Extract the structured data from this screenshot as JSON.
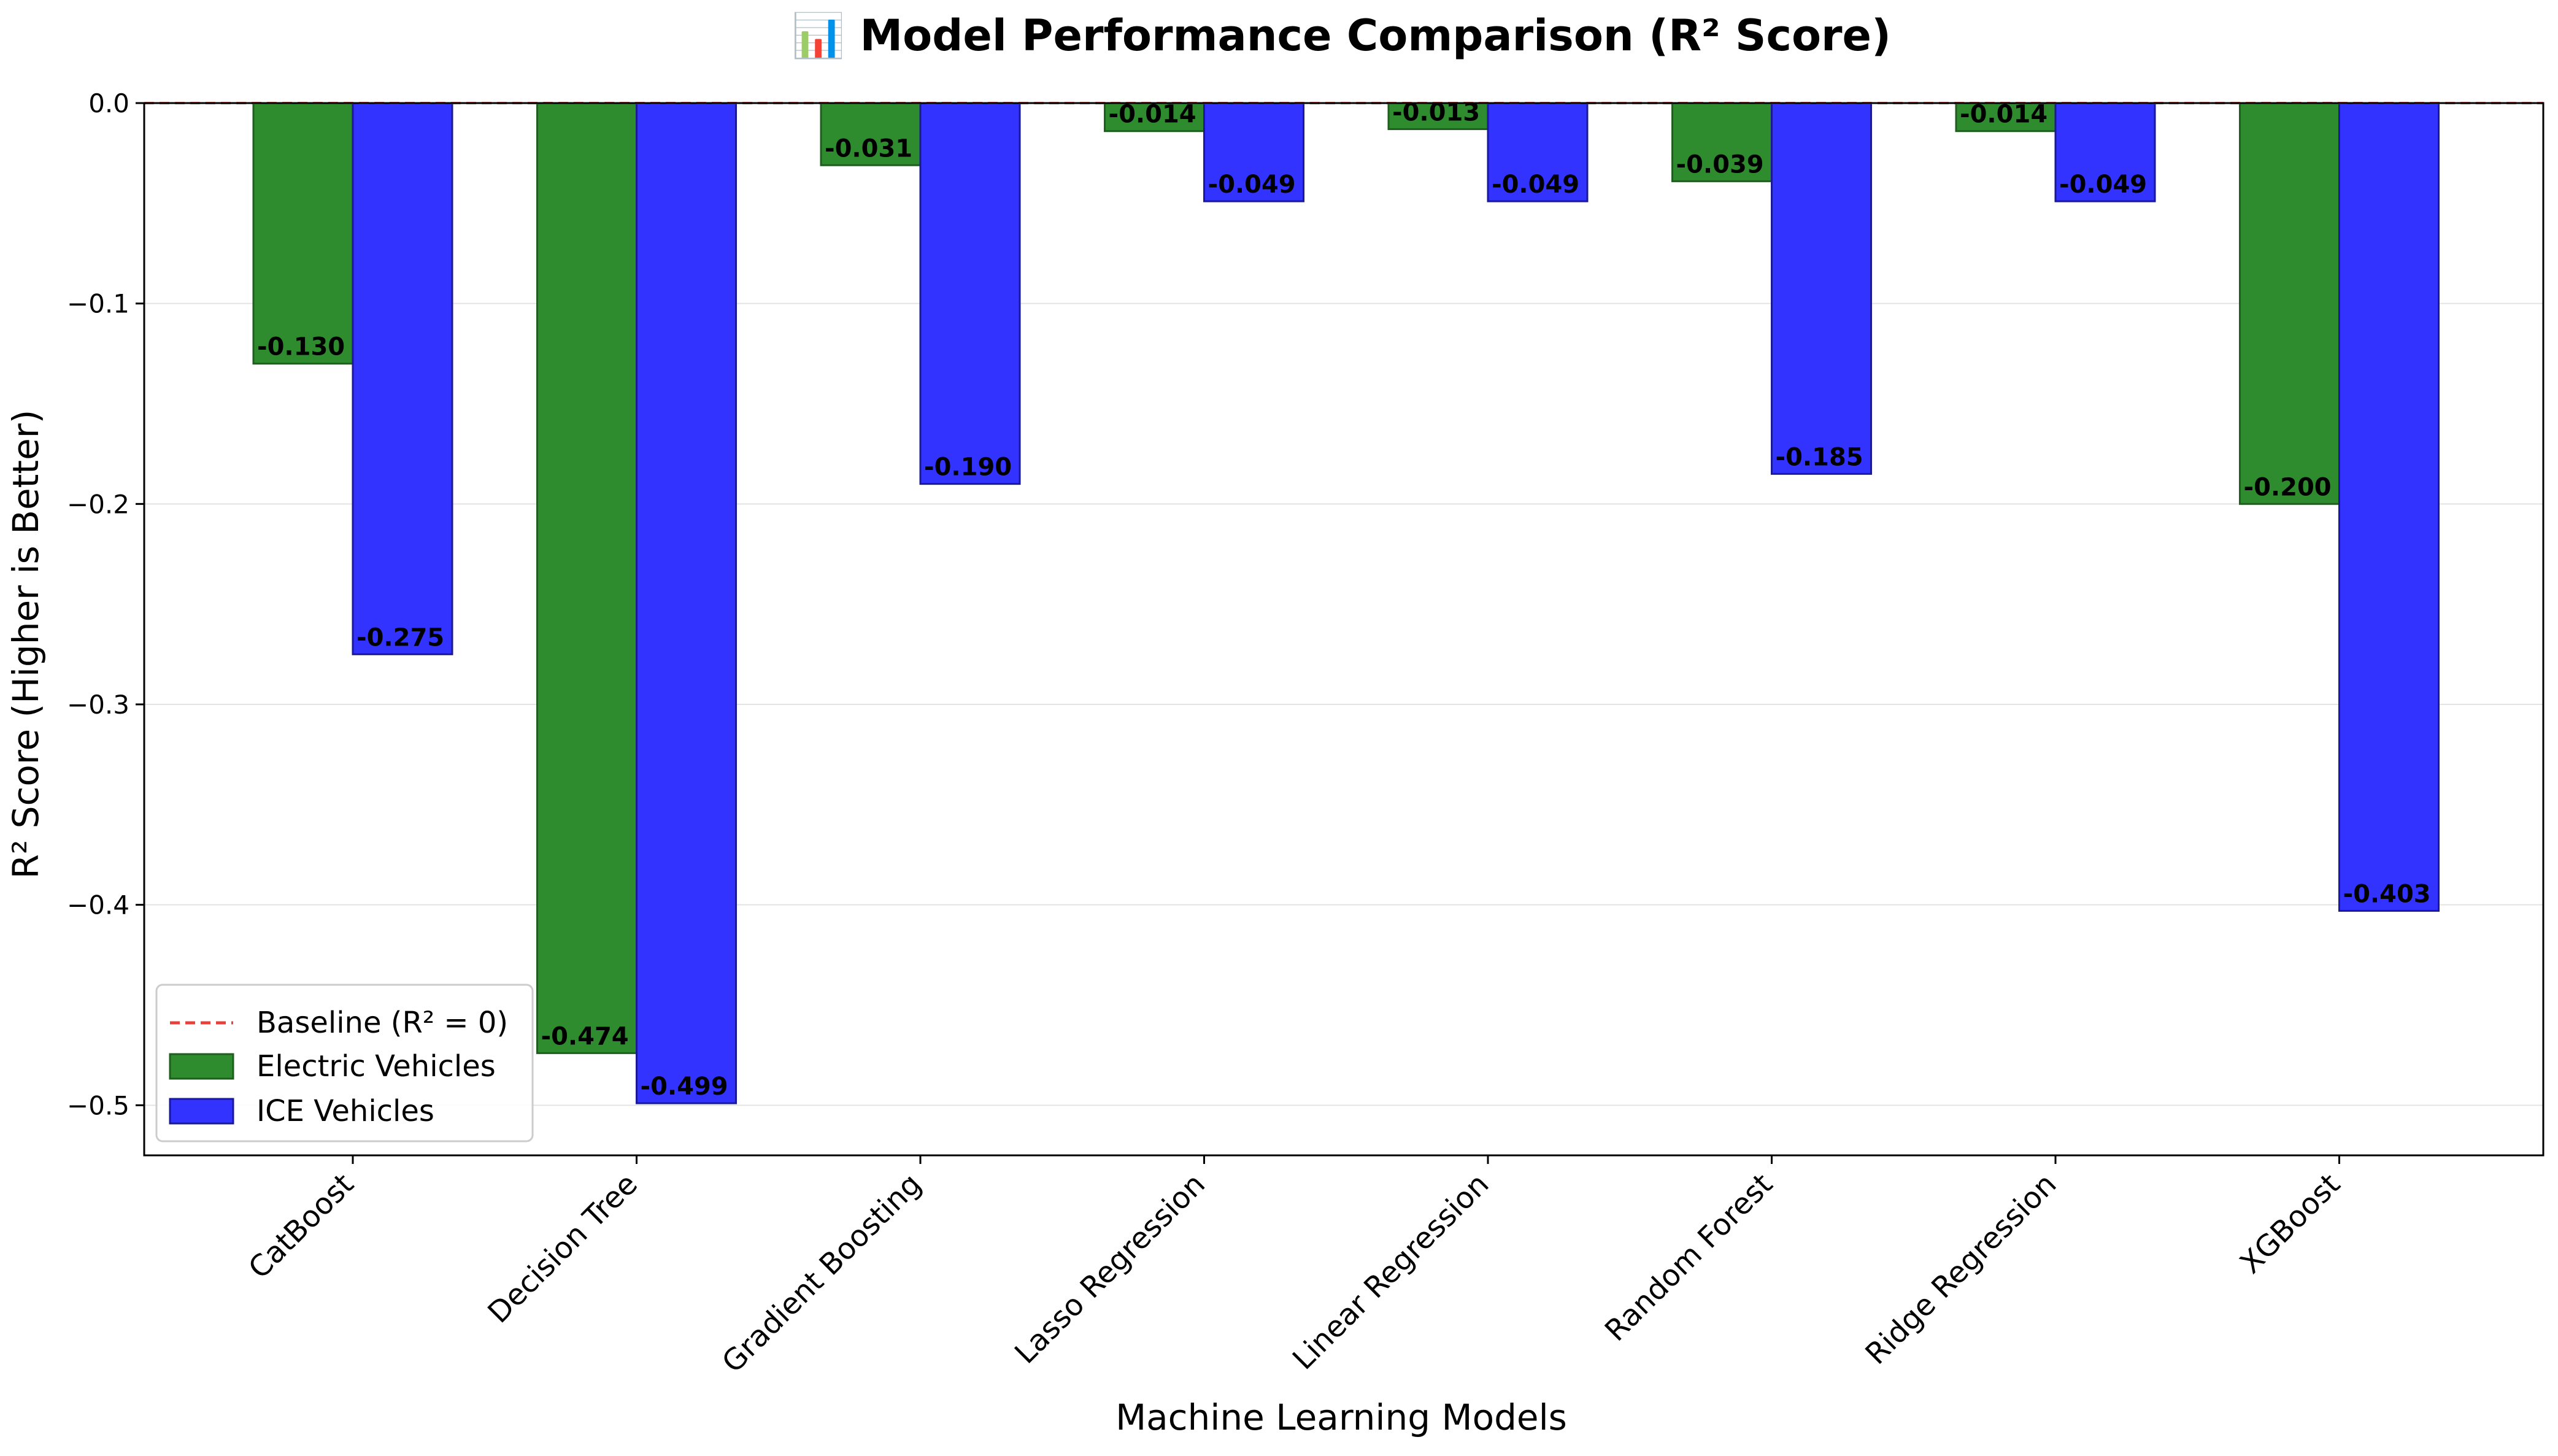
{
  "chart_data": {
    "type": "bar",
    "title": "📊 Model Performance Comparison (R² Score)",
    "xlabel": "Machine Learning Models",
    "ylabel": "R² Score (Higher is Better)",
    "ylim": [
      -0.525,
      0.0
    ],
    "yticks": [
      0.0,
      -0.1,
      -0.2,
      -0.3,
      -0.4,
      -0.5
    ],
    "ytick_labels": [
      "0.0",
      "−0.1",
      "−0.2",
      "−0.3",
      "−0.4",
      "−0.5"
    ],
    "grid": "horizontal",
    "legend_position": "lower-left",
    "categories": [
      "CatBoost",
      "Decision Tree",
      "Gradient Boosting",
      "Lasso Regression",
      "Linear Regression",
      "Random Forest",
      "Ridge Regression",
      "XGBoost"
    ],
    "series": [
      {
        "name": "Electric Vehicles",
        "color": "#2e8b2e",
        "edge_color": "#1f5e1f",
        "values": [
          -0.13,
          -0.474,
          -0.031,
          -0.014,
          -0.013,
          -0.039,
          -0.014,
          -0.2
        ],
        "labels": [
          "-0.130",
          "-0.474",
          "-0.031",
          "-0.014",
          "-0.013",
          "-0.039",
          "-0.014",
          "-0.200"
        ]
      },
      {
        "name": "ICE Vehicles",
        "color": "#3333ff",
        "edge_color": "#1a1a99",
        "values": [
          -0.275,
          -0.499,
          -0.19,
          -0.049,
          -0.049,
          -0.185,
          -0.049,
          -0.403
        ],
        "labels": [
          "-0.275",
          "-0.499",
          "-0.190",
          "-0.049",
          "-0.049",
          "-0.185",
          "-0.049",
          "-0.403"
        ]
      }
    ],
    "baseline": {
      "name": "Baseline (R² = 0)",
      "value": 0,
      "color": "#e8403a",
      "style": "dashed"
    }
  }
}
